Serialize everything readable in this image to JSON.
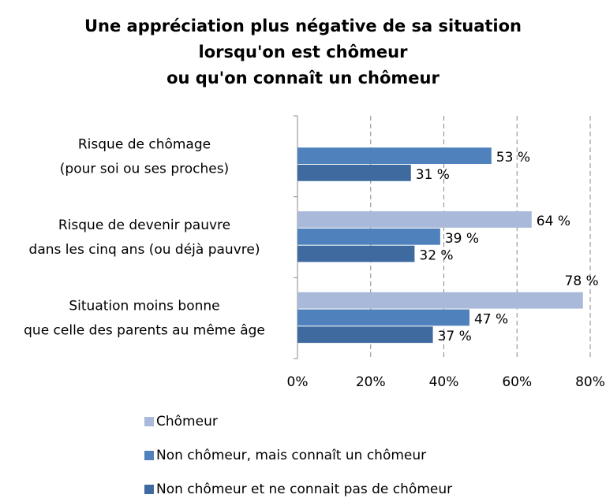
{
  "chart_data": {
    "type": "hbar",
    "title": [
      "Une appréciation plus négative de sa situation",
      "lorsqu'on est chômeur",
      "ou qu'on connaît un chômeur"
    ],
    "categories": [
      [
        "Risque de chômage",
        "(pour soi ou ses proches)"
      ],
      [
        "Risque de devenir pauvre",
        "dans les cinq ans (ou déjà pauvre)"
      ],
      [
        "Situation moins bonne",
        "que celle des parents au même âge"
      ]
    ],
    "series": [
      {
        "name": "Chômeur",
        "color": "#a9b9d9",
        "values": [
          null,
          64,
          78
        ],
        "value_labels": [
          null,
          "64 %",
          "78 %"
        ]
      },
      {
        "name": "Non chômeur, mais connaît un chômeur",
        "color": "#4f81bd",
        "values": [
          53,
          39,
          47
        ],
        "value_labels": [
          "53 %",
          "39 %",
          "47 %"
        ]
      },
      {
        "name": "Non chômeur et ne connait pas de chômeur",
        "color": "#3e6a9f",
        "values": [
          31,
          32,
          37
        ],
        "value_labels": [
          "31 %",
          "32 %",
          "37 %"
        ]
      }
    ],
    "xlim": [
      0,
      80
    ],
    "xticks": [
      {
        "value": 0,
        "label": "0%"
      },
      {
        "value": 20,
        "label": "20%"
      },
      {
        "value": 40,
        "label": "40%"
      },
      {
        "value": 60,
        "label": "60%"
      },
      {
        "value": 80,
        "label": "80%"
      }
    ],
    "grid": true,
    "legend": "bottom"
  }
}
